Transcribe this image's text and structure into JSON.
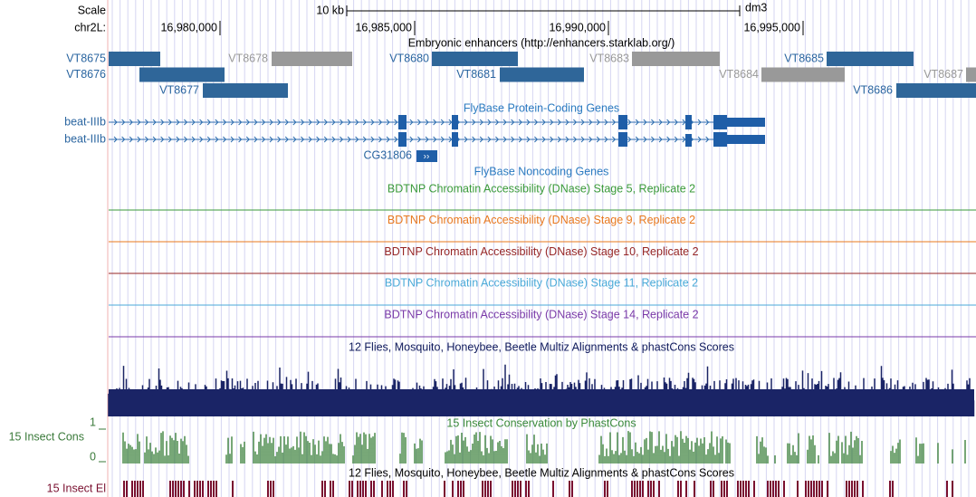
{
  "header": {
    "scale_label": "Scale",
    "scale_text": "10 kb",
    "assembly": "dm3",
    "chrom": "chr2L:",
    "ticks": [
      "16,980,000",
      "16,985,000",
      "16,990,000",
      "16,995,000"
    ]
  },
  "enhancers": {
    "title": "Embryonic enhancers (http://enhancers.starklab.org/)",
    "features": [
      "VT8675",
      "VT8676",
      "VT8677",
      "VT8678",
      "VT8680",
      "VT8681",
      "VT8683",
      "VT8684",
      "VT8685",
      "VT8686",
      "VT8687"
    ]
  },
  "genes": {
    "title": "FlyBase Protein-Coding Genes",
    "features": [
      "beat-IIIb",
      "beat-IIIb",
      "CG31806"
    ]
  },
  "noncoding": {
    "title": "FlyBase Noncoding Genes"
  },
  "bdtnp": [
    "BDTNP Chromatin Accessibility (DNase) Stage 5, Replicate 2",
    "BDTNP Chromatin Accessibility (DNase) Stage 9, Replicate 2",
    "BDTNP Chromatin Accessibility (DNase) Stage 10, Replicate 2",
    "BDTNP Chromatin Accessibility (DNase) Stage 11, Replicate 2",
    "BDTNP Chromatin Accessibility (DNase) Stage 14, Replicate 2"
  ],
  "multiz": {
    "title": "12 Flies, Mosquito, Honeybee, Beetle Multiz Alignments & phastCons Scores"
  },
  "phastcons": {
    "title": "15 Insect Conservation by PhastCons",
    "side_label": "15 Insect Cons",
    "max": 1,
    "min": 0
  },
  "elements": {
    "title": "12 Flies, Mosquito, Honeybee, Beetle Multiz Alignments & phastCons Scores",
    "side_label": "15 Insect El"
  }
}
